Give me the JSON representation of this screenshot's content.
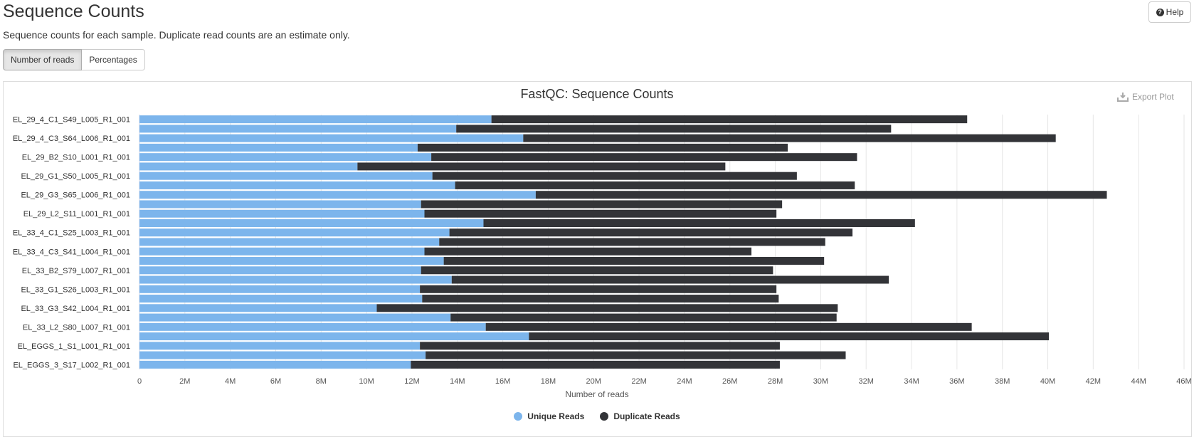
{
  "header": {
    "title": "Sequence Counts",
    "subtitle": "Sequence counts for each sample. Duplicate read counts are an estimate only.",
    "help_label": "Help"
  },
  "toggle": {
    "reads_label": "Number of reads",
    "percent_label": "Percentages"
  },
  "export_label": "Export Plot",
  "colors": {
    "unique": "#7cb5ec",
    "duplicate": "#333438",
    "grid": "#e6e6e6"
  },
  "chart_data": {
    "type": "bar",
    "orientation": "horizontal",
    "stacked": true,
    "title": "FastQC: Sequence Counts",
    "xlabel": "Number of reads",
    "ylabel": "",
    "xlim": [
      0,
      46000000
    ],
    "xticks": [
      "0",
      "2M",
      "4M",
      "6M",
      "8M",
      "10M",
      "12M",
      "14M",
      "16M",
      "18M",
      "20M",
      "22M",
      "24M",
      "26M",
      "28M",
      "30M",
      "32M",
      "34M",
      "36M",
      "38M",
      "40M",
      "42M",
      "44M",
      "46M"
    ],
    "legend_position": "bottom-center",
    "grid": true,
    "categories": [
      "EL_29_4_C1_S49_L005_R1_001",
      "",
      "EL_29_4_C3_S64_L006_R1_001",
      "",
      "EL_29_B2_S10_L001_R1_001",
      "",
      "EL_29_G1_S50_L005_R1_001",
      "",
      "EL_29_G3_S65_L006_R1_001",
      "",
      "EL_29_L2_S11_L001_R1_001",
      "",
      "EL_33_4_C1_S25_L003_R1_001",
      "",
      "EL_33_4_C3_S41_L004_R1_001",
      "",
      "EL_33_B2_S79_L007_R1_001",
      "",
      "EL_33_G1_S26_L003_R1_001",
      "",
      "EL_33_G3_S42_L004_R1_001",
      "",
      "EL_33_L2_S80_L007_R1_001",
      "",
      "EL_EGGS_1_S1_L001_R1_001",
      "",
      "EL_EGGS_3_S17_L002_R1_001"
    ],
    "series": [
      {
        "name": "Unique Reads",
        "values": [
          15.5,
          13.95,
          16.9,
          12.25,
          12.85,
          9.6,
          12.9,
          13.9,
          17.45,
          12.4,
          12.55,
          15.15,
          13.65,
          13.2,
          12.55,
          13.4,
          12.4,
          13.75,
          12.35,
          12.45,
          10.45,
          13.7,
          15.25,
          17.15,
          12.35,
          12.6,
          11.95
        ]
      },
      {
        "name": "Duplicate Reads",
        "values": [
          20.95,
          19.15,
          23.45,
          16.3,
          18.75,
          16.2,
          16.05,
          17.6,
          25.15,
          15.9,
          15.5,
          19.0,
          17.75,
          17.0,
          14.4,
          16.75,
          15.5,
          19.25,
          15.7,
          15.7,
          20.3,
          17.0,
          21.4,
          22.9,
          15.85,
          18.5,
          16.25
        ]
      }
    ]
  }
}
